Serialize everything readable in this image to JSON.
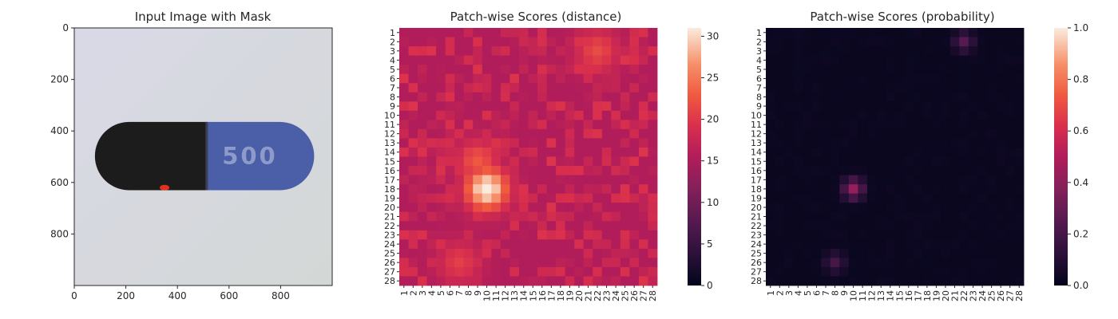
{
  "chart_data": [
    {
      "type": "image",
      "title": "Input Image with Mask",
      "xlim": [
        0,
        1000
      ],
      "ylim": [
        1000,
        0
      ],
      "xticks": [
        "0",
        "200",
        "400",
        "600",
        "800"
      ],
      "yticks": [
        "0",
        "200",
        "400",
        "600",
        "800"
      ],
      "capsule": {
        "left_color": "#1c1c1c",
        "right_color": "#4b5ea8",
        "text": "500",
        "x_range": [
          80,
          930
        ],
        "y_range": [
          365,
          630
        ],
        "split_x": 515
      },
      "mask": {
        "color": "#e0311f",
        "x": 350,
        "y": 620
      }
    },
    {
      "type": "heatmap",
      "title": "Patch-wise Scores (distance)",
      "rows": 28,
      "cols": 28,
      "tick_labels": [
        "1",
        "2",
        "3",
        "4",
        "5",
        "6",
        "7",
        "8",
        "9",
        "10",
        "11",
        "12",
        "13",
        "14",
        "15",
        "16",
        "17",
        "18",
        "19",
        "20",
        "21",
        "22",
        "23",
        "24",
        "25",
        "26",
        "27",
        "28"
      ],
      "colorbar": {
        "min": 0,
        "max": 30,
        "ticks": [
          "0",
          "5",
          "10",
          "15",
          "20",
          "25",
          "30"
        ]
      },
      "hotspots": [
        {
          "row": 18,
          "col": 10,
          "value": 31
        },
        {
          "row": 15,
          "col": 9,
          "value": 22
        },
        {
          "row": 3,
          "col": 22,
          "value": 21
        },
        {
          "row": 26,
          "col": 7,
          "value": 20
        }
      ],
      "base_value": 15
    },
    {
      "type": "heatmap",
      "title": "Patch-wise Scores (probability)",
      "rows": 28,
      "cols": 28,
      "tick_labels": [
        "1",
        "2",
        "3",
        "4",
        "5",
        "6",
        "7",
        "8",
        "9",
        "10",
        "11",
        "12",
        "13",
        "14",
        "15",
        "16",
        "17",
        "18",
        "19",
        "20",
        "21",
        "22",
        "23",
        "24",
        "25",
        "26",
        "27",
        "28"
      ],
      "colorbar": {
        "min": 0.0,
        "max": 1.0,
        "ticks": [
          "0.0",
          "0.2",
          "0.4",
          "0.6",
          "0.8",
          "1.0"
        ]
      },
      "hotspots": [
        {
          "row": 18,
          "col": 10,
          "value": 0.42
        },
        {
          "row": 2,
          "col": 22,
          "value": 0.25
        },
        {
          "row": 26,
          "col": 8,
          "value": 0.2
        }
      ],
      "base_value": 0.02
    }
  ]
}
